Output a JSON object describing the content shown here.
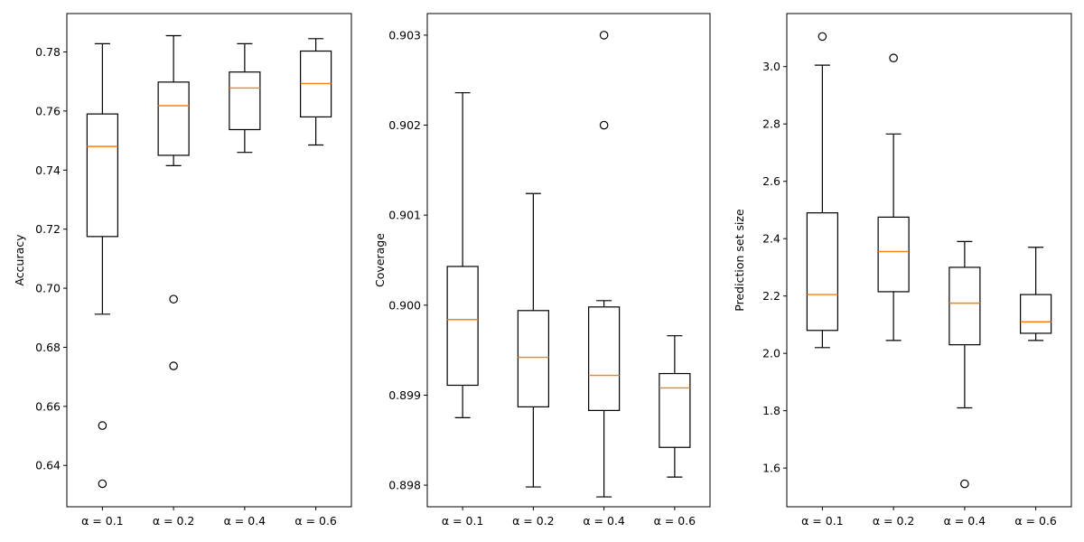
{
  "chart_data": [
    {
      "type": "box",
      "title": "",
      "xlabel": "",
      "ylabel": "Accuracy",
      "ylim": [
        0.626,
        0.793
      ],
      "yticks": [
        0.64,
        0.66,
        0.68,
        0.7,
        0.72,
        0.74,
        0.76,
        0.78
      ],
      "ytick_labels": [
        "0.64",
        "0.66",
        "0.68",
        "0.70",
        "0.72",
        "0.74",
        "0.76",
        "0.78"
      ],
      "categories": [
        "α = 0.1",
        "α = 0.2",
        "α = 0.4",
        "α = 0.6"
      ],
      "boxes": [
        {
          "whisker_low": 0.6912,
          "q1": 0.7175,
          "median": 0.748,
          "q3": 0.759,
          "whisker_high": 0.7828,
          "outliers": [
            0.6535,
            0.6338
          ]
        },
        {
          "whisker_low": 0.7415,
          "q1": 0.745,
          "median": 0.7618,
          "q3": 0.7698,
          "whisker_high": 0.7855,
          "outliers": [
            0.6963,
            0.6737
          ]
        },
        {
          "whisker_low": 0.746,
          "q1": 0.7537,
          "median": 0.7678,
          "q3": 0.7732,
          "whisker_high": 0.7828,
          "outliers": []
        },
        {
          "whisker_low": 0.7485,
          "q1": 0.758,
          "median": 0.7693,
          "q3": 0.7803,
          "whisker_high": 0.7845,
          "outliers": []
        }
      ]
    },
    {
      "type": "box",
      "title": "",
      "xlabel": "",
      "ylabel": "Coverage",
      "ylim": [
        0.89776,
        0.90324
      ],
      "yticks": [
        0.898,
        0.899,
        0.9,
        0.901,
        0.902,
        0.903
      ],
      "ytick_labels": [
        "0.898",
        "0.899",
        "0.900",
        "0.901",
        "0.902",
        "0.903"
      ],
      "categories": [
        "α = 0.1",
        "α = 0.2",
        "α = 0.4",
        "α = 0.6"
      ],
      "boxes": [
        {
          "whisker_low": 0.89875,
          "q1": 0.89911,
          "median": 0.89984,
          "q3": 0.90043,
          "whisker_high": 0.90236,
          "outliers": []
        },
        {
          "whisker_low": 0.89798,
          "q1": 0.89887,
          "median": 0.89942,
          "q3": 0.89994,
          "whisker_high": 0.90124,
          "outliers": []
        },
        {
          "whisker_low": 0.89787,
          "q1": 0.89883,
          "median": 0.89922,
          "q3": 0.89998,
          "whisker_high": 0.90005,
          "outliers": [
            0.903,
            0.902
          ]
        },
        {
          "whisker_low": 0.89809,
          "q1": 0.89842,
          "median": 0.89908,
          "q3": 0.89924,
          "whisker_high": 0.89966,
          "outliers": []
        }
      ]
    },
    {
      "type": "box",
      "title": "",
      "xlabel": "",
      "ylabel": "Prediction set size",
      "ylim": [
        1.465,
        3.185
      ],
      "yticks": [
        1.6,
        1.8,
        2.0,
        2.2,
        2.4,
        2.6,
        2.8,
        3.0
      ],
      "ytick_labels": [
        "1.6",
        "1.8",
        "2.0",
        "2.2",
        "2.4",
        "2.6",
        "2.8",
        "3.0"
      ],
      "categories": [
        "α = 0.1",
        "α = 0.2",
        "α = 0.4",
        "α = 0.6"
      ],
      "boxes": [
        {
          "whisker_low": 2.02,
          "q1": 2.08,
          "median": 2.205,
          "q3": 2.49,
          "whisker_high": 3.005,
          "outliers": [
            3.105
          ]
        },
        {
          "whisker_low": 2.045,
          "q1": 2.215,
          "median": 2.355,
          "q3": 2.475,
          "whisker_high": 2.765,
          "outliers": [
            3.03
          ]
        },
        {
          "whisker_low": 1.81,
          "q1": 2.03,
          "median": 2.175,
          "q3": 2.3,
          "whisker_high": 2.39,
          "outliers": [
            1.545
          ]
        },
        {
          "whisker_low": 2.045,
          "q1": 2.07,
          "median": 2.11,
          "q3": 2.205,
          "whisker_high": 2.37,
          "outliers": []
        }
      ]
    }
  ],
  "style": {
    "median_color": "#ff7f0e",
    "box_color": "#000000"
  }
}
